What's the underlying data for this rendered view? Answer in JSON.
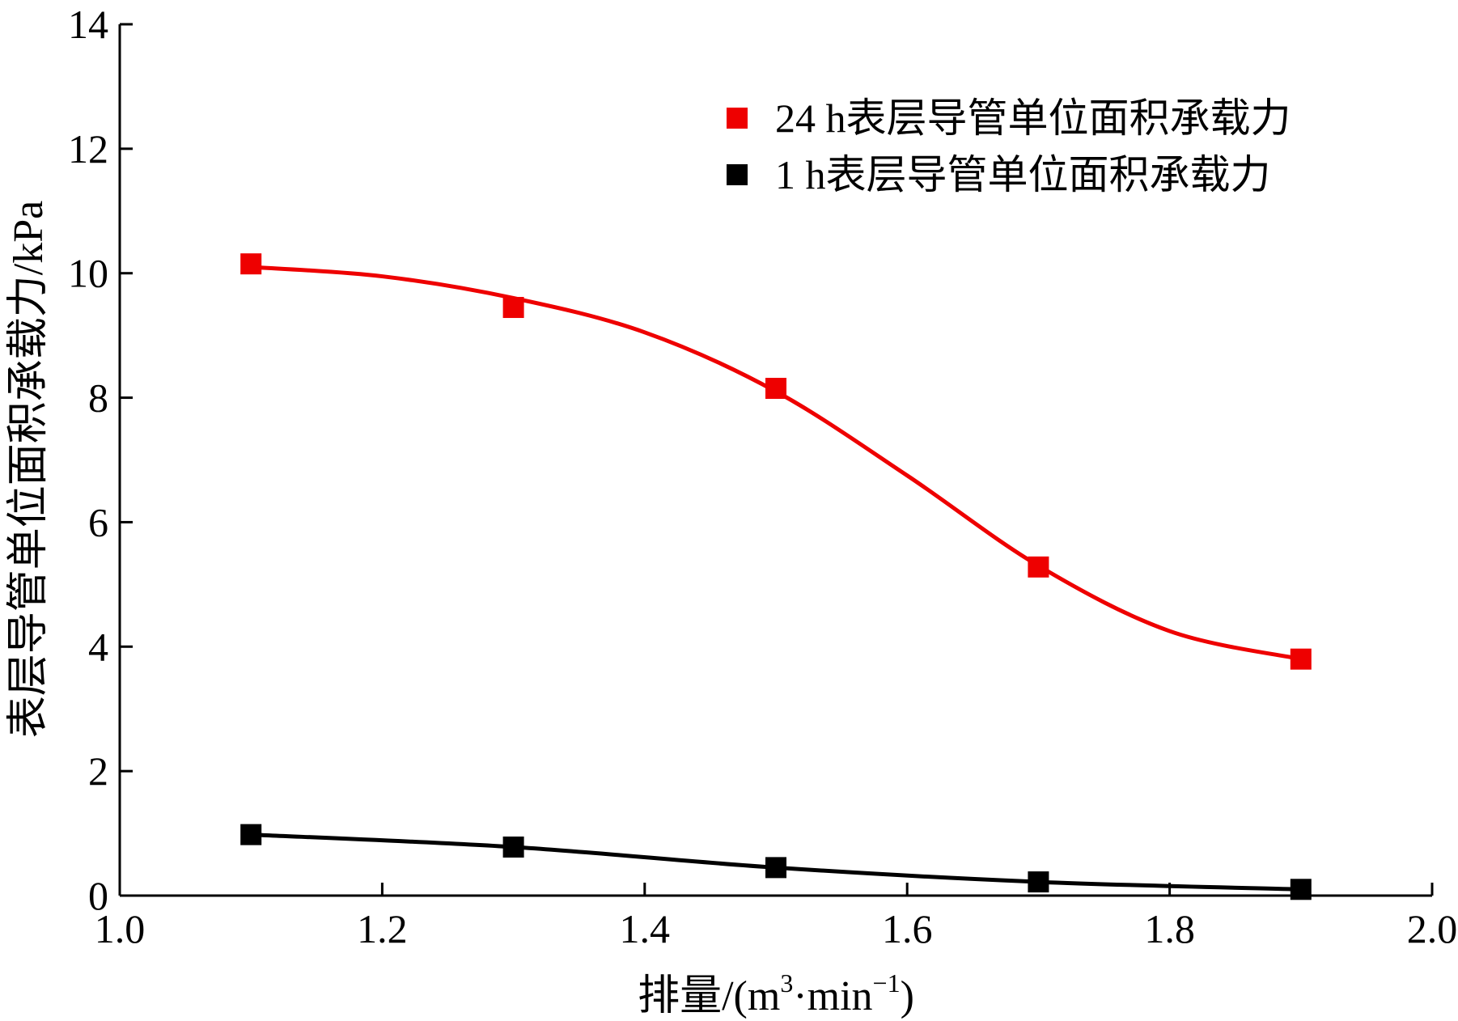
{
  "chart_data": {
    "type": "line",
    "title": "",
    "xlabel": "排量/(m³·min⁻¹)",
    "xlabel_parts": {
      "main": "排量/(m",
      "sup1": "3",
      "mid": "·min",
      "sup2": "−1",
      "end": ")"
    },
    "ylabel": "表层导管单位面积承载力/kPa",
    "xlim": [
      1.0,
      2.0
    ],
    "ylim": [
      0,
      14
    ],
    "x_ticks": [
      1.0,
      1.2,
      1.4,
      1.6,
      1.8,
      2.0
    ],
    "x_tick_labels": [
      "1.0",
      "1.2",
      "1.4",
      "1.6",
      "1.8",
      "2.0"
    ],
    "y_ticks": [
      0,
      2,
      4,
      6,
      8,
      10,
      12,
      14
    ],
    "y_tick_labels": [
      "0",
      "2",
      "4",
      "6",
      "8",
      "10",
      "12",
      "14"
    ],
    "grid": false,
    "legend_position": "top-right",
    "x": [
      1.1,
      1.3,
      1.5,
      1.7,
      1.9
    ],
    "series": [
      {
        "name": "24 h表层导管单位面积承载力",
        "color": "#ee0000",
        "marker": "square",
        "values": [
          10.15,
          9.45,
          8.15,
          5.28,
          3.8
        ],
        "fit_curve": [
          [
            1.1,
            10.1
          ],
          [
            1.2,
            9.95
          ],
          [
            1.3,
            9.6
          ],
          [
            1.4,
            9.05
          ],
          [
            1.5,
            8.1
          ],
          [
            1.6,
            6.75
          ],
          [
            1.7,
            5.3
          ],
          [
            1.8,
            4.25
          ],
          [
            1.9,
            3.8
          ]
        ]
      },
      {
        "name": "1 h表层导管单位面积承载力",
        "color": "#000000",
        "marker": "square",
        "values": [
          0.98,
          0.78,
          0.45,
          0.22,
          0.1
        ],
        "fit_curve": [
          [
            1.1,
            0.98
          ],
          [
            1.3,
            0.78
          ],
          [
            1.5,
            0.45
          ],
          [
            1.7,
            0.22
          ],
          [
            1.9,
            0.1
          ]
        ]
      }
    ]
  }
}
